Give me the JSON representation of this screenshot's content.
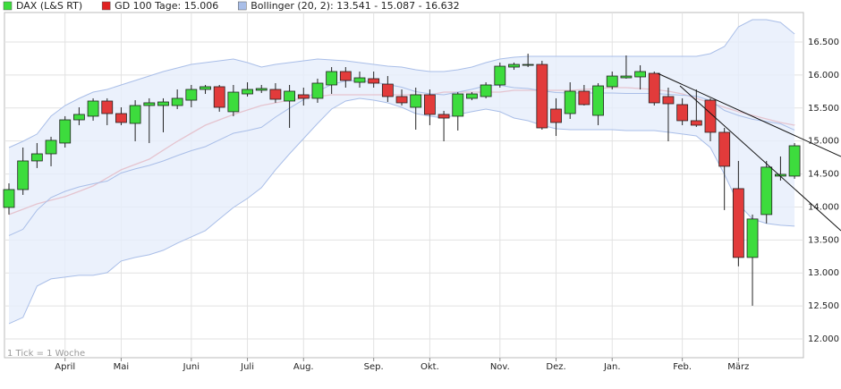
{
  "chart_data": {
    "type": "candlestick",
    "note": "1 Tick = 1 Woche",
    "categories": [
      null,
      null,
      null,
      null,
      "April",
      null,
      null,
      null,
      "Mai",
      null,
      null,
      null,
      null,
      "Juni",
      null,
      null,
      null,
      "Juli",
      null,
      null,
      null,
      "Aug.",
      null,
      null,
      null,
      null,
      "Sep.",
      null,
      null,
      null,
      "Okt.",
      null,
      null,
      null,
      null,
      "Nov.",
      null,
      null,
      null,
      "Dez.",
      null,
      null,
      null,
      "Jan.",
      null,
      null,
      null,
      null,
      "Feb.",
      null,
      null,
      null,
      "März",
      null,
      null,
      null,
      null
    ],
    "series": [
      {
        "name": "DAX (L&S RT)",
        "type": "candlestick",
        "color": "#3ddc3d",
        "up_color": "#3ddc3d",
        "down_color": "#e23b3b",
        "open": [
          13993,
          14264,
          14698,
          14806,
          14969,
          15321,
          15376,
          15606,
          15416,
          15267,
          15538,
          15538,
          15538,
          15619,
          15782,
          15823,
          15444,
          15714,
          15769,
          15782,
          15606,
          15701,
          15647,
          15850,
          16053,
          15890,
          15945,
          15863,
          15674,
          15511,
          15701,
          15403,
          15376,
          15647,
          15674,
          15850,
          16121,
          16148,
          16161,
          15484,
          15416,
          15755,
          15389,
          15823,
          15958,
          15972,
          16026,
          15674,
          15552,
          15308,
          15619,
          15132,
          14278,
          13235,
          13885,
          14468,
          14468
        ],
        "high": [
          14359,
          14901,
          14969,
          15064,
          15376,
          15511,
          15647,
          15647,
          15511,
          15619,
          15647,
          15647,
          15782,
          15850,
          15850,
          15850,
          15850,
          15890,
          15850,
          15877,
          15850,
          15809,
          15945,
          16121,
          16121,
          16053,
          16053,
          15985,
          15782,
          15809,
          15782,
          15457,
          15741,
          15741,
          15890,
          16189,
          16189,
          16324,
          16216,
          15647,
          15890,
          15850,
          15877,
          16053,
          16297,
          16148,
          16053,
          15809,
          15647,
          15782,
          15647,
          15199,
          14698,
          13885,
          14698,
          14766,
          14969
        ],
        "low": [
          13885,
          14183,
          14590,
          14617,
          14901,
          15240,
          15308,
          15240,
          15240,
          14996,
          14969,
          15132,
          15484,
          15511,
          15714,
          15444,
          15376,
          15674,
          15728,
          15579,
          15199,
          15538,
          15579,
          15714,
          15809,
          15809,
          15809,
          15592,
          15538,
          15172,
          15240,
          14996,
          15159,
          15619,
          15647,
          15809,
          16080,
          16121,
          15172,
          15077,
          15335,
          15538,
          15240,
          15782,
          15945,
          15782,
          15538,
          14996,
          15240,
          15213,
          14996,
          13953,
          13100,
          12503,
          13750,
          14400,
          14427
        ],
        "close": [
          14264,
          14698,
          14806,
          15010,
          15321,
          15403,
          15606,
          15416,
          15281,
          15538,
          15579,
          15592,
          15647,
          15782,
          15823,
          15511,
          15741,
          15782,
          15796,
          15633,
          15755,
          15647,
          15877,
          16053,
          15918,
          15958,
          15877,
          15674,
          15579,
          15701,
          15403,
          15348,
          15714,
          15714,
          15850,
          16134,
          16161,
          16161,
          15199,
          15281,
          15755,
          15552,
          15836,
          15985,
          15985,
          16053,
          15579,
          15565,
          15308,
          15240,
          15132,
          14617,
          13235,
          13818,
          14604,
          14495,
          14928
        ]
      },
      {
        "name": "GD 100 Tage: 15.006",
        "type": "line",
        "color": "#e02020",
        "values": [
          13885,
          13966,
          14047,
          14102,
          14156,
          14237,
          14319,
          14441,
          14563,
          14644,
          14725,
          14861,
          14996,
          15118,
          15240,
          15321,
          15403,
          15470,
          15538,
          15579,
          15619,
          15647,
          15674,
          15701,
          15701,
          15701,
          15701,
          15701,
          15701,
          15701,
          15701,
          15741,
          15741,
          15741,
          15741,
          15741,
          15769,
          15769,
          15769,
          15769,
          15769,
          15782,
          15796,
          15809,
          15809,
          15796,
          15782,
          15755,
          15714,
          15647,
          15579,
          15511,
          15444,
          15389,
          15335,
          15281,
          15240
        ]
      },
      {
        "name": "Bollinger (20, 2): 13.541 - 15.087 - 16.632",
        "type": "band",
        "color": "#a9bee8",
        "fill": "#e6edfb",
        "upper": [
          14901,
          14996,
          15105,
          15376,
          15538,
          15647,
          15741,
          15782,
          15850,
          15918,
          15985,
          16053,
          16107,
          16161,
          16189,
          16216,
          16243,
          16189,
          16121,
          16161,
          16189,
          16216,
          16243,
          16229,
          16216,
          16189,
          16161,
          16134,
          16121,
          16080,
          16053,
          16053,
          16080,
          16121,
          16189,
          16243,
          16270,
          16283,
          16283,
          16283,
          16283,
          16283,
          16283,
          16283,
          16283,
          16283,
          16283,
          16283,
          16283,
          16283,
          16324,
          16433,
          16731,
          16839,
          16839,
          16798,
          16622
        ],
        "middle": [
          13567,
          13662,
          13953,
          14143,
          14237,
          14305,
          14352,
          14393,
          14515,
          14577,
          14630,
          14698,
          14779,
          14854,
          14915,
          15017,
          15118,
          15159,
          15207,
          15362,
          15498,
          15627,
          15755,
          15857,
          15911,
          15918,
          15890,
          15857,
          15816,
          15748,
          15715,
          15701,
          15742,
          15783,
          15837,
          15844,
          15809,
          15796,
          15762,
          15735,
          15728,
          15728,
          15728,
          15728,
          15721,
          15721,
          15721,
          15708,
          15694,
          15680,
          15613,
          15464,
          15388,
          15329,
          15295,
          15261,
          15166
        ],
        "lower": [
          12232,
          12327,
          12801,
          12909,
          12936,
          12963,
          12963,
          13004,
          13180,
          13235,
          13275,
          13343,
          13451,
          13546,
          13641,
          13818,
          13993,
          14129,
          14292,
          14563,
          14806,
          15037,
          15267,
          15484,
          15606,
          15647,
          15619,
          15579,
          15511,
          15416,
          15376,
          15348,
          15403,
          15444,
          15484,
          15444,
          15348,
          15308,
          15240,
          15186,
          15172,
          15172,
          15172,
          15172,
          15159,
          15159,
          15159,
          15132,
          15105,
          15077,
          14901,
          14495,
          14044,
          13818,
          13750,
          13723,
          13709
        ]
      }
    ],
    "ylim": [
      11715,
      16975
    ],
    "yticks": [
      {
        "value": 12000,
        "label": "12.000"
      },
      {
        "value": 12500,
        "label": "12.500"
      },
      {
        "value": 13000,
        "label": "13.000"
      },
      {
        "value": 13500,
        "label": "13.500"
      },
      {
        "value": 14000,
        "label": "14.000"
      },
      {
        "value": 14500,
        "label": "14.500"
      },
      {
        "value": 15000,
        "label": "15.000"
      },
      {
        "value": 15500,
        "label": "15.500"
      },
      {
        "value": 16000,
        "label": "16.000"
      },
      {
        "value": 16500,
        "label": "16.500"
      }
    ],
    "grid": true
  }
}
